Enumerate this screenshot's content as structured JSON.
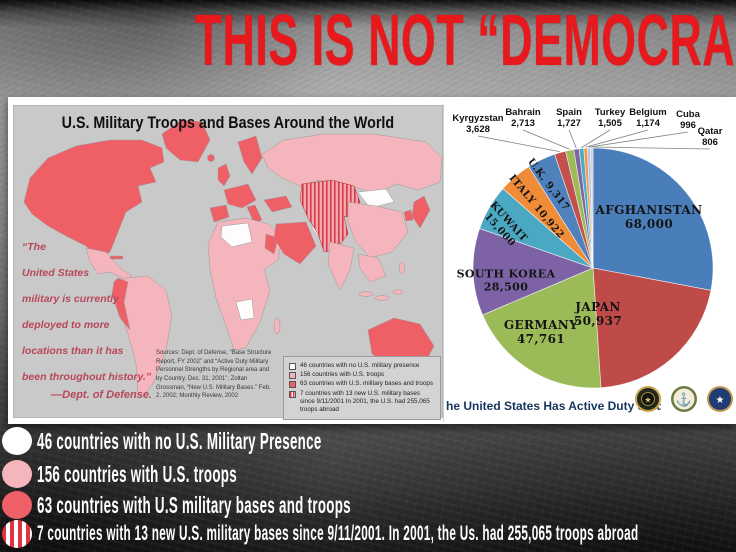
{
  "slide_title": "THIS IS NOT “DEMOCRACY.”",
  "palette": {
    "title_red": "#e8191d",
    "no_presence": "#ffffff",
    "troops": "#f4b5bc",
    "bases": "#ee5f66",
    "stripe_red": "#e0333e",
    "map_ocean": "#c9c9c9"
  },
  "map": {
    "title": "U.S. Military Troops and Bases Around the World",
    "quote": "“The\nUnited States\nmilitary is currently\ndeployed to more\nlocations than it has\nbeen throughout history.”",
    "attribution": "—Dept. of Defense.",
    "sources": "Sources: Dept. of Defense, “Base Structure Report, FY 2002” and “Active Duty Military Personnel Strengths by Regional area and by Country, Dec. 31, 2001”; Zoltan Grossman, “New U.S. Military Bases.” Feb. 2, 2002; Monthly Review, 2002",
    "legend": [
      {
        "swatch": "no_presence",
        "label": "46 countries with no U.S. military presence"
      },
      {
        "swatch": "troops",
        "label": "156 countries with U.S. troops"
      },
      {
        "swatch": "bases",
        "label": "63 countries with U.S. military bases and troops"
      },
      {
        "swatch": "new_bases",
        "label": "7 countries with 13 new U.S. military bases since 9/11/2001 In 2001, the U.S. had 255,065 troops abroad"
      }
    ]
  },
  "chart_data": {
    "type": "pie",
    "title": "he United States Has Active Duty Soldiers",
    "legend_position": "none",
    "series": [
      {
        "country": "AFGHANISTAN",
        "value": 68000,
        "display": "68,000",
        "color": "#4A7EBA"
      },
      {
        "country": "JAPAN",
        "value": 50937,
        "display": "50,937",
        "color": "#BE4B48"
      },
      {
        "country": "GERMANY",
        "value": 47761,
        "display": "47,761",
        "color": "#9BBB59"
      },
      {
        "country": "SOUTH KOREA",
        "value": 28500,
        "display": "28,500",
        "color": "#7D63A5"
      },
      {
        "country": "KUWAIT",
        "value": 15000,
        "display": "15,000",
        "color": "#4AA8C2"
      },
      {
        "country": "ITALY",
        "value": 10922,
        "display": "10,922",
        "color": "#F08C38"
      },
      {
        "country": "U.K.",
        "value": 9317,
        "display": "9,317",
        "color": "#4F81BD"
      },
      {
        "country": "Kyrgyzstan",
        "value": 3628,
        "display": "3,628",
        "color": "#C2504D"
      },
      {
        "country": "Bahrain",
        "value": 2713,
        "display": "2,713",
        "color": "#9BBB59"
      },
      {
        "country": "Spain",
        "value": 1727,
        "display": "1,727",
        "color": "#8064A2"
      },
      {
        "country": "Turkey",
        "value": 1505,
        "display": "1,505",
        "color": "#4BACC6"
      },
      {
        "country": "Belgium",
        "value": 1174,
        "display": "1,174",
        "color": "#F79646"
      },
      {
        "country": "Cuba",
        "value": 996,
        "display": "996",
        "color": "#A8C6E5"
      },
      {
        "country": "Qatar",
        "value": 806,
        "display": "806",
        "color": "#CFC9DE"
      }
    ]
  },
  "bottom_legend": [
    {
      "swatch": "no_presence",
      "label": "46 countries with no U.S. Military Presence"
    },
    {
      "swatch": "troops",
      "label": "156 countries with U.S. troops"
    },
    {
      "swatch": "bases",
      "label": "63 countries with U.S military bases and troops"
    },
    {
      "swatch": "striped",
      "label": "7 countries with 13 new U.S. military bases since 9/11/2001. In 2001, the Us. had 255,065 troops abroad"
    }
  ]
}
